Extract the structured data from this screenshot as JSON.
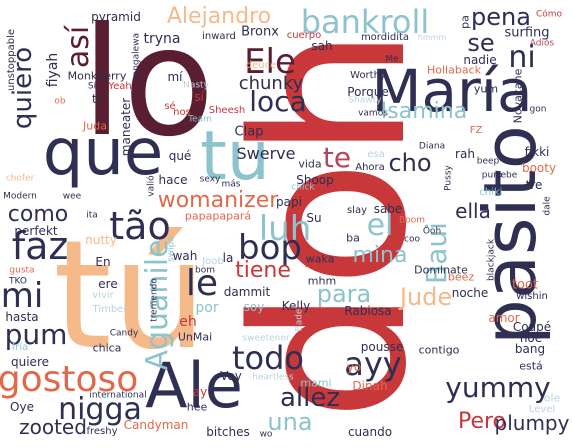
{
  "palette": {
    "dark_maroon": "#5a1e33",
    "navy": "#2e2f52",
    "red": "#c8373a",
    "peach": "#f5b98a",
    "teal": "#8cc3cc",
    "pale_blue": "#bcd3d9",
    "orange": "#e1694a",
    "rose": "#b6465e"
  },
  "words": [
    {
      "t": "doh",
      "c": "red",
      "v": 1
    },
    {
      "t": "lo",
      "c": "dark_maroon"
    },
    {
      "t": "tú",
      "c": "peach"
    },
    {
      "t": "pasito",
      "c": "navy",
      "v": 1
    },
    {
      "t": "que",
      "c": "navy"
    },
    {
      "t": "tu",
      "c": "teal"
    },
    {
      "t": "María",
      "c": "navy"
    },
    {
      "t": "Ale",
      "c": "navy"
    },
    {
      "t": "gostoso",
      "c": "orange"
    },
    {
      "t": "bankroll",
      "c": "teal"
    },
    {
      "t": "Alejandro",
      "c": "peach"
    },
    {
      "t": "Ele",
      "c": "dark_maroon"
    },
    {
      "t": "loca",
      "c": "navy"
    },
    {
      "t": "así",
      "c": "dark_maroon",
      "v": 1
    },
    {
      "t": "quiero",
      "c": "navy",
      "v": 1
    },
    {
      "t": "faz",
      "c": "navy"
    },
    {
      "t": "mi",
      "c": "navy"
    },
    {
      "t": "pum",
      "c": "navy"
    },
    {
      "t": "como",
      "c": "navy"
    },
    {
      "t": "tão",
      "c": "navy"
    },
    {
      "t": "nigga",
      "c": "navy"
    },
    {
      "t": "bop",
      "c": "navy"
    },
    {
      "t": "le",
      "c": "navy"
    },
    {
      "t": "todo",
      "c": "navy"
    },
    {
      "t": "ayy",
      "c": "navy"
    },
    {
      "t": "allez",
      "c": "navy"
    },
    {
      "t": "yummy",
      "c": "navy"
    },
    {
      "t": "Pero",
      "c": "red"
    },
    {
      "t": "plumpy",
      "c": "navy"
    },
    {
      "t": "una",
      "c": "teal"
    },
    {
      "t": "para",
      "c": "teal"
    },
    {
      "t": "Jude",
      "c": "peach"
    },
    {
      "t": "el",
      "c": "teal"
    },
    {
      "t": "mina",
      "c": "teal"
    },
    {
      "t": "luh",
      "c": "teal"
    },
    {
      "t": "tiene",
      "c": "red"
    },
    {
      "t": "Aguanile",
      "c": "teal",
      "v": 1
    },
    {
      "t": "Baui",
      "c": "teal",
      "v": 1
    },
    {
      "t": "womanizer",
      "c": "orange"
    },
    {
      "t": "Swerve",
      "c": "navy"
    },
    {
      "t": "te",
      "c": "rose"
    },
    {
      "t": "cho",
      "c": "navy"
    },
    {
      "t": "chunky",
      "c": "navy"
    },
    {
      "t": "Isamina",
      "c": "teal"
    },
    {
      "t": "pena",
      "c": "navy"
    },
    {
      "t": "ni",
      "c": "navy"
    },
    {
      "t": "se",
      "c": "navy"
    },
    {
      "t": "ella",
      "c": "navy"
    },
    {
      "t": "zooted",
      "c": "navy"
    },
    {
      "t": "amor",
      "c": "orange"
    },
    {
      "t": "Coupé",
      "c": "navy"
    },
    {
      "t": "bang",
      "c": "navy"
    },
    {
      "t": "hoe",
      "c": "navy"
    },
    {
      "t": "está",
      "c": "navy"
    },
    {
      "t": "ole",
      "c": "pale_blue"
    },
    {
      "t": "Level",
      "c": "pale_blue"
    },
    {
      "t": "cuando",
      "c": "navy"
    },
    {
      "t": "pyramid",
      "c": "navy"
    },
    {
      "t": "fiyah",
      "c": "navy",
      "v": 1
    },
    {
      "t": "cambio",
      "c": "dark_maroon",
      "v": 1
    },
    {
      "t": "unstoppable",
      "c": "navy",
      "v": 1
    },
    {
      "t": "Monkberry",
      "c": "navy"
    },
    {
      "t": "tryna",
      "c": "navy"
    },
    {
      "t": "Bronx",
      "c": "navy"
    },
    {
      "t": "inward",
      "c": "navy"
    },
    {
      "t": "cuerpo",
      "c": "red"
    },
    {
      "t": "sah",
      "c": "navy"
    },
    {
      "t": "mordidita",
      "c": "navy"
    },
    {
      "t": "surfing",
      "c": "navy"
    },
    {
      "t": "nadie",
      "c": "navy"
    },
    {
      "t": "Cómo",
      "c": "red"
    },
    {
      "t": "Adiós",
      "c": "rose"
    },
    {
      "t": "hmmm",
      "c": "pale_blue"
    },
    {
      "t": "Hollaback",
      "c": "orange"
    },
    {
      "t": "Worthy",
      "c": "navy"
    },
    {
      "t": "Porque",
      "c": "navy"
    },
    {
      "t": "Novacane",
      "c": "navy",
      "v": 1
    },
    {
      "t": "yum",
      "c": "navy"
    },
    {
      "t": "mí",
      "c": "navy"
    },
    {
      "t": "sí",
      "c": "red"
    },
    {
      "t": "ti",
      "c": "navy"
    },
    {
      "t": "Juda",
      "c": "orange"
    },
    {
      "t": "Nasty",
      "c": "pale_blue"
    },
    {
      "t": "Team",
      "c": "teal"
    },
    {
      "t": "deuce",
      "c": "peach"
    },
    {
      "t": "Shawty",
      "c": "pale_blue"
    },
    {
      "t": "Sheesh",
      "c": "red"
    },
    {
      "t": "Clap",
      "c": "navy"
    },
    {
      "t": "qué",
      "c": "navy"
    },
    {
      "t": "hace",
      "c": "navy"
    },
    {
      "t": "vida",
      "c": "navy"
    },
    {
      "t": "Shoop",
      "c": "navy"
    },
    {
      "t": "papi",
      "c": "navy"
    },
    {
      "t": "papapapará",
      "c": "orange"
    },
    {
      "t": "esa",
      "c": "pale_blue"
    },
    {
      "t": "rah",
      "c": "navy"
    },
    {
      "t": "Ahora",
      "c": "navy"
    },
    {
      "t": "Diana",
      "c": "navy"
    },
    {
      "t": "beep",
      "c": "navy"
    },
    {
      "t": "fikki",
      "c": "navy"
    },
    {
      "t": "booty",
      "c": "orange"
    },
    {
      "t": "tre",
      "c": "navy"
    },
    {
      "t": "chiki",
      "c": "teal"
    },
    {
      "t": "sabe",
      "c": "navy"
    },
    {
      "t": "slay",
      "c": "navy"
    },
    {
      "t": "Boom",
      "c": "orange"
    },
    {
      "t": "coo",
      "c": "navy"
    },
    {
      "t": "Dominate",
      "c": "navy"
    },
    {
      "t": "waka",
      "c": "navy"
    },
    {
      "t": "mhm",
      "c": "navy"
    },
    {
      "t": "perfekt",
      "c": "navy"
    },
    {
      "t": "nutty",
      "c": "peach"
    },
    {
      "t": "wah",
      "c": "navy"
    },
    {
      "t": "Joob",
      "c": "pale_blue"
    },
    {
      "t": "bom",
      "c": "navy"
    },
    {
      "t": "dammit",
      "c": "navy"
    },
    {
      "t": "loco",
      "c": "red"
    },
    {
      "t": "beez",
      "c": "orange"
    },
    {
      "t": "toot",
      "c": "orange"
    },
    {
      "t": "noche",
      "c": "navy"
    },
    {
      "t": "wishin",
      "c": "navy"
    },
    {
      "t": "Rabiosa",
      "c": "navy"
    },
    {
      "t": "Kelly",
      "c": "navy"
    },
    {
      "t": "por",
      "c": "teal"
    },
    {
      "t": "eh",
      "c": "red"
    },
    {
      "t": "soy",
      "c": "teal"
    },
    {
      "t": "pousse",
      "c": "navy"
    },
    {
      "t": "contigo",
      "c": "navy"
    },
    {
      "t": "quiere",
      "c": "navy"
    },
    {
      "t": "chica",
      "c": "navy"
    },
    {
      "t": "hasta",
      "c": "navy"
    },
    {
      "t": "vivir",
      "c": "pale_blue"
    },
    {
      "t": "Timber",
      "c": "pale_blue"
    },
    {
      "t": "ere",
      "c": "navy"
    },
    {
      "t": "UnMai",
      "c": "navy"
    },
    {
      "t": "Voy",
      "c": "navy"
    },
    {
      "t": "mami",
      "c": "teal"
    },
    {
      "t": "Dinah",
      "c": "orange"
    },
    {
      "t": "yo",
      "c": "orange"
    },
    {
      "t": "international",
      "c": "navy"
    },
    {
      "t": "Oye",
      "c": "navy"
    },
    {
      "t": "Candyman",
      "c": "orange"
    },
    {
      "t": "bitches",
      "c": "navy"
    },
    {
      "t": "freshy",
      "c": "navy"
    },
    {
      "t": "TKO",
      "c": "navy"
    },
    {
      "t": "gusta",
      "c": "orange"
    },
    {
      "t": "Modern",
      "c": "navy"
    },
    {
      "t": "chofer",
      "c": "peach"
    },
    {
      "t": "ita",
      "c": "navy"
    },
    {
      "t": "sweetener",
      "c": "pale_blue"
    },
    {
      "t": "heartless",
      "c": "pale_blue"
    },
    {
      "t": "ay",
      "c": "red"
    },
    {
      "t": "hee",
      "c": "navy"
    },
    {
      "t": "Yeah",
      "c": "red"
    },
    {
      "t": "maneater",
      "c": "navy",
      "v": 1
    },
    {
      "t": "zangalewa",
      "c": "navy",
      "v": 1
    },
    {
      "t": "pa",
      "c": "navy",
      "v": 1
    },
    {
      "t": "gon",
      "c": "navy"
    },
    {
      "t": "sexy",
      "c": "navy"
    },
    {
      "t": "bebe",
      "c": "navy"
    },
    {
      "t": "puro",
      "c": "navy"
    },
    {
      "t": "dale",
      "c": "navy",
      "v": 1
    },
    {
      "t": "Pussy",
      "c": "navy",
      "v": 1
    },
    {
      "t": "valió",
      "c": "navy",
      "v": 1
    },
    {
      "t": "wee",
      "c": "navy"
    },
    {
      "t": "swipe",
      "c": "teal",
      "v": 1
    },
    {
      "t": "blackjack",
      "c": "navy",
      "v": 1
    },
    {
      "t": "Candy",
      "c": "navy"
    },
    {
      "t": "tremendo",
      "c": "navy",
      "v": 1
    },
    {
      "t": "En",
      "c": "navy"
    },
    {
      "t": "Su",
      "c": "navy"
    },
    {
      "t": "la",
      "c": "navy"
    },
    {
      "t": "ba",
      "c": "navy"
    },
    {
      "t": "Ooh",
      "c": "navy"
    },
    {
      "t": "vamos",
      "c": "navy"
    },
    {
      "t": "Me",
      "c": "navy"
    },
    {
      "t": "fría",
      "c": "teal"
    },
    {
      "t": "Bade",
      "c": "pale_blue",
      "v": 1
    },
    {
      "t": "nos",
      "c": "red"
    },
    {
      "t": "más",
      "c": "navy"
    },
    {
      "t": "ob",
      "c": "orange"
    },
    {
      "t": "Sí",
      "c": "navy"
    },
    {
      "t": "FZ",
      "c": "orange"
    },
    {
      "t": "chick",
      "c": "teal"
    },
    {
      "t": "sé",
      "c": "red"
    },
    {
      "t": "wo",
      "c": "navy"
    }
  ]
}
